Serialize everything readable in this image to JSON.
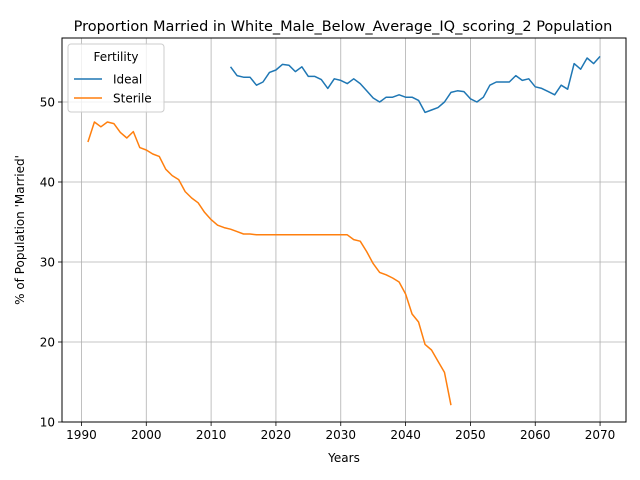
{
  "chart_data": {
    "type": "line",
    "title": "Proportion Married in White_Male_Below_Average_IQ_scoring_2 Population",
    "xlabel": "Years",
    "ylabel": "% of Population 'Married'",
    "xlim": [
      1987,
      2074
    ],
    "ylim": [
      10,
      58
    ],
    "xticks": [
      1990,
      2000,
      2010,
      2020,
      2030,
      2040,
      2050,
      2060,
      2070
    ],
    "yticks": [
      10,
      20,
      30,
      40,
      50
    ],
    "grid": true,
    "legend": {
      "title": "Fertility",
      "location": "upper-left"
    },
    "series": [
      {
        "name": "Ideal",
        "color": "#1f77b4",
        "x": [
          2013,
          2014,
          2015,
          2016,
          2017,
          2018,
          2019,
          2020,
          2021,
          2022,
          2023,
          2024,
          2025,
          2026,
          2027,
          2028,
          2029,
          2030,
          2031,
          2032,
          2033,
          2034,
          2035,
          2036,
          2037,
          2038,
          2039,
          2040,
          2041,
          2042,
          2043,
          2044,
          2045,
          2046,
          2047,
          2048,
          2049,
          2050,
          2051,
          2052,
          2053,
          2054,
          2055,
          2056,
          2057,
          2058,
          2059,
          2060,
          2061,
          2062,
          2063,
          2064,
          2065,
          2066,
          2067,
          2068,
          2069,
          2070
        ],
        "y": [
          54.4,
          53.3,
          53.1,
          53.1,
          52.1,
          52.5,
          53.7,
          54.0,
          54.7,
          54.6,
          53.8,
          54.4,
          53.2,
          53.2,
          52.8,
          51.7,
          52.9,
          52.7,
          52.3,
          52.9,
          52.3,
          51.4,
          50.5,
          50.0,
          50.6,
          50.6,
          50.9,
          50.6,
          50.6,
          50.2,
          48.7,
          49.0,
          49.3,
          50.0,
          51.2,
          51.4,
          51.3,
          50.4,
          50.0,
          50.6,
          52.1,
          52.5,
          52.5,
          52.5,
          53.3,
          52.7,
          52.9,
          51.9,
          51.7,
          51.3,
          50.9,
          52.1,
          51.6,
          54.8,
          54.1,
          55.5,
          54.8,
          55.7
        ]
      },
      {
        "name": "Sterile",
        "color": "#ff7f0e",
        "x": [
          1991,
          1992,
          1993,
          1994,
          1995,
          1996,
          1997,
          1998,
          1999,
          2000,
          2001,
          2002,
          2003,
          2004,
          2005,
          2006,
          2007,
          2008,
          2009,
          2010,
          2011,
          2012,
          2013,
          2014,
          2015,
          2016,
          2017,
          2018,
          2019,
          2020,
          2021,
          2022,
          2023,
          2024,
          2025,
          2026,
          2027,
          2028,
          2029,
          2030,
          2031,
          2032,
          2033,
          2034,
          2035,
          2036,
          2037,
          2038,
          2039,
          2040,
          2041,
          2042,
          2043,
          2044,
          2045,
          2046,
          2047
        ],
        "y": [
          45.0,
          47.5,
          46.9,
          47.5,
          47.3,
          46.2,
          45.5,
          46.3,
          44.3,
          44.0,
          43.5,
          43.2,
          41.6,
          40.8,
          40.3,
          38.8,
          38.0,
          37.4,
          36.2,
          35.3,
          34.6,
          34.3,
          34.1,
          33.8,
          33.5,
          33.5,
          33.4,
          33.4,
          33.4,
          33.4,
          33.4,
          33.4,
          33.4,
          33.4,
          33.4,
          33.4,
          33.4,
          33.4,
          33.4,
          33.4,
          33.4,
          32.8,
          32.6,
          31.3,
          29.8,
          28.7,
          28.4,
          28.0,
          27.5,
          26.0,
          23.5,
          22.5,
          19.7,
          19.0,
          17.6,
          16.2,
          12.1
        ]
      }
    ]
  }
}
